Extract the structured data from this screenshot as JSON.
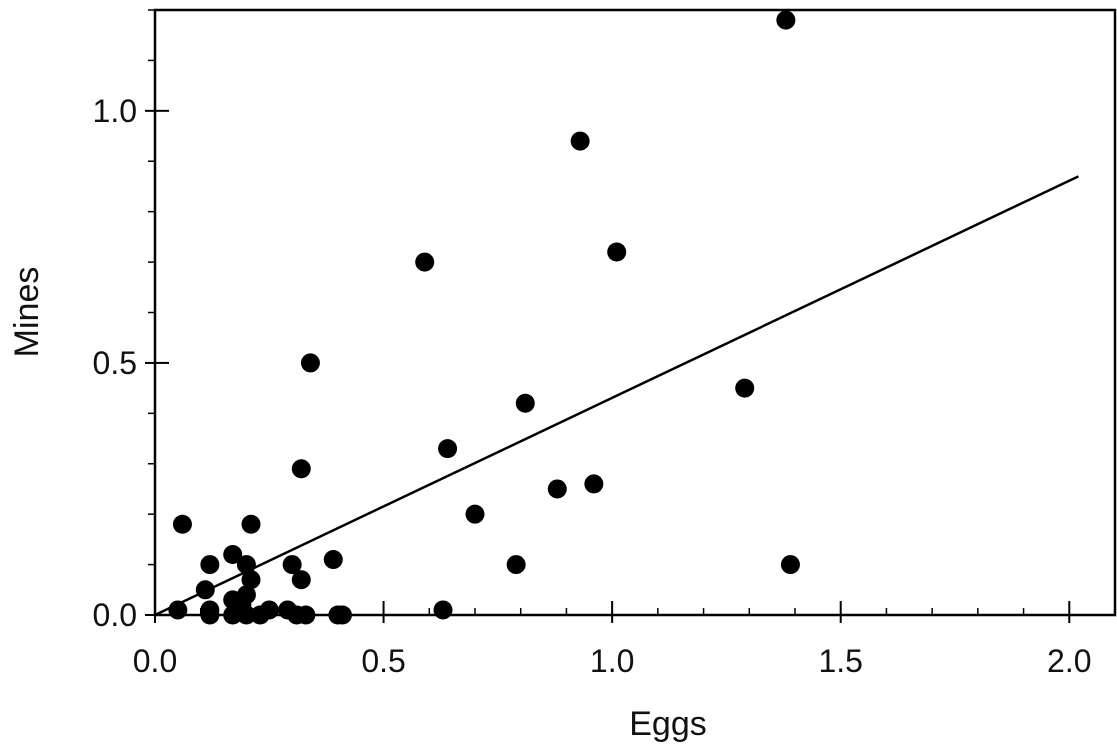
{
  "chart_data": {
    "type": "scatter",
    "title": "",
    "xlabel": "Eggs",
    "ylabel": "Mines",
    "xlim": [
      0.0,
      2.1
    ],
    "ylim": [
      0.0,
      1.2
    ],
    "x_ticks": [
      {
        "value": 0.0,
        "label": "0.0"
      },
      {
        "value": 0.5,
        "label": "0.5"
      },
      {
        "value": 1.0,
        "label": "1.0"
      },
      {
        "value": 1.5,
        "label": "1.5"
      },
      {
        "value": 2.0,
        "label": "2.0"
      }
    ],
    "y_ticks": [
      {
        "value": 0.0,
        "label": "0.0"
      },
      {
        "value": 0.5,
        "label": "0.5"
      },
      {
        "value": 1.0,
        "label": "1.0"
      }
    ],
    "x_minor_step": 0.1,
    "y_minor_step": 0.1,
    "grid": false,
    "legend": "none",
    "marker_color": "#000000",
    "series": [
      {
        "points": [
          {
            "x": 1.38,
            "y": 1.18
          },
          {
            "x": 0.93,
            "y": 0.94
          },
          {
            "x": 1.01,
            "y": 0.72
          },
          {
            "x": 0.59,
            "y": 0.7
          },
          {
            "x": 0.34,
            "y": 0.5
          },
          {
            "x": 1.29,
            "y": 0.45
          },
          {
            "x": 0.81,
            "y": 0.42
          },
          {
            "x": 0.64,
            "y": 0.33
          },
          {
            "x": 0.32,
            "y": 0.29
          },
          {
            "x": 0.96,
            "y": 0.26
          },
          {
            "x": 0.88,
            "y": 0.25
          },
          {
            "x": 0.7,
            "y": 0.2
          },
          {
            "x": 0.06,
            "y": 0.18
          },
          {
            "x": 0.21,
            "y": 0.18
          },
          {
            "x": 0.17,
            "y": 0.12
          },
          {
            "x": 0.39,
            "y": 0.11
          },
          {
            "x": 0.12,
            "y": 0.1
          },
          {
            "x": 0.2,
            "y": 0.1
          },
          {
            "x": 0.3,
            "y": 0.1
          },
          {
            "x": 0.79,
            "y": 0.1
          },
          {
            "x": 1.39,
            "y": 0.1
          },
          {
            "x": 0.21,
            "y": 0.07
          },
          {
            "x": 0.32,
            "y": 0.07
          },
          {
            "x": 0.11,
            "y": 0.05
          },
          {
            "x": 0.2,
            "y": 0.04
          },
          {
            "x": 0.17,
            "y": 0.03
          },
          {
            "x": 0.19,
            "y": 0.02
          },
          {
            "x": 0.05,
            "y": 0.01
          },
          {
            "x": 0.12,
            "y": 0.01
          },
          {
            "x": 0.25,
            "y": 0.01
          },
          {
            "x": 0.29,
            "y": 0.01
          },
          {
            "x": 0.63,
            "y": 0.01
          },
          {
            "x": 0.12,
            "y": 0.0
          },
          {
            "x": 0.17,
            "y": 0.0
          },
          {
            "x": 0.2,
            "y": 0.0
          },
          {
            "x": 0.23,
            "y": 0.0
          },
          {
            "x": 0.31,
            "y": 0.0
          },
          {
            "x": 0.33,
            "y": 0.0
          },
          {
            "x": 0.4,
            "y": 0.0
          },
          {
            "x": 0.41,
            "y": 0.0
          }
        ]
      }
    ],
    "fit_line": {
      "type": "linear",
      "from": {
        "x": 0.0,
        "y": 0.0
      },
      "to": {
        "x": 2.02,
        "y": 0.87
      }
    }
  }
}
